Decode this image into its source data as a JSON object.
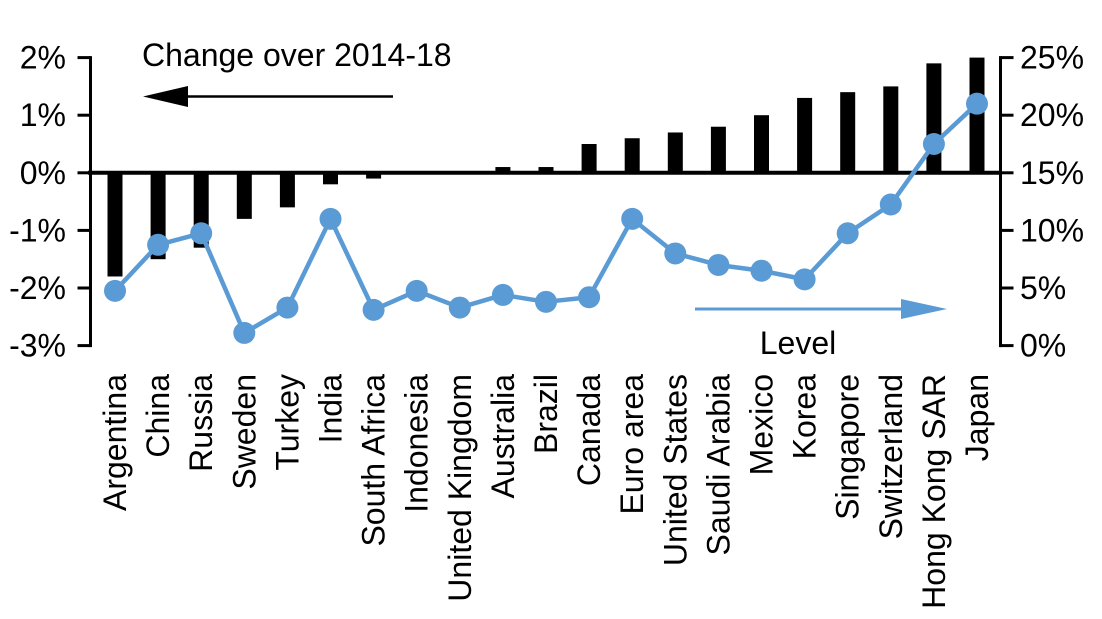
{
  "chart_data": {
    "type": "combo",
    "title": "",
    "categories": [
      "Argentina",
      "China",
      "Russia",
      "Sweden",
      "Turkey",
      "India",
      "South Africa",
      "Indonesia",
      "United Kingdom",
      "Australia",
      "Brazil",
      "Canada",
      "Euro area",
      "United States",
      "Saudi Arabia",
      "Mexico",
      "Korea",
      "Singapore",
      "Switzerland",
      "Hong Kong SAR",
      "Japan"
    ],
    "series": [
      {
        "name": "Change over 2014-18",
        "type": "bar",
        "axis": "left",
        "unit": "percentage points",
        "color": "#000000",
        "values": [
          -1.8,
          -1.5,
          -1.3,
          -0.8,
          -0.6,
          -0.2,
          -0.1,
          0,
          0,
          0.1,
          0.1,
          0.5,
          0.6,
          0.7,
          0.8,
          1.0,
          1.3,
          1.4,
          1.5,
          1.9,
          2.0
        ]
      },
      {
        "name": "Level",
        "type": "line",
        "axis": "right",
        "unit": "%",
        "color": "#5B9BD5",
        "values": [
          4.75,
          8.75,
          9.75,
          1.1,
          3.3,
          11,
          3.1,
          4.75,
          3.3,
          4.4,
          3.8,
          4.2,
          11,
          8,
          7,
          6.5,
          5.75,
          9.75,
          12.25,
          17.5,
          21
        ]
      }
    ],
    "left_axis": {
      "min": -3,
      "max": 2,
      "tick_values": [
        2,
        1,
        0,
        -1,
        -2,
        -3
      ],
      "tick_labels": [
        "2%",
        "1%",
        "0%",
        "-1%",
        "-2%",
        "-3%"
      ]
    },
    "right_axis": {
      "min": 0,
      "max": 25,
      "tick_values": [
        25,
        20,
        15,
        10,
        5,
        0
      ],
      "tick_labels": [
        "25%",
        "20%",
        "15%",
        "10%",
        "5%",
        "0%"
      ]
    },
    "annotations": [
      {
        "id": "change",
        "text": "Change over 2014-18",
        "arrow_direction": "left",
        "color": "#000000"
      },
      {
        "id": "level",
        "text": "Level",
        "arrow_direction": "right",
        "color": "#5B9BD5"
      }
    ],
    "grid": false,
    "legend_position": "none"
  },
  "colors": {
    "bar": "#000000",
    "line": "#5B9BD5",
    "axis": "#000000",
    "background": "#FFFFFF"
  }
}
